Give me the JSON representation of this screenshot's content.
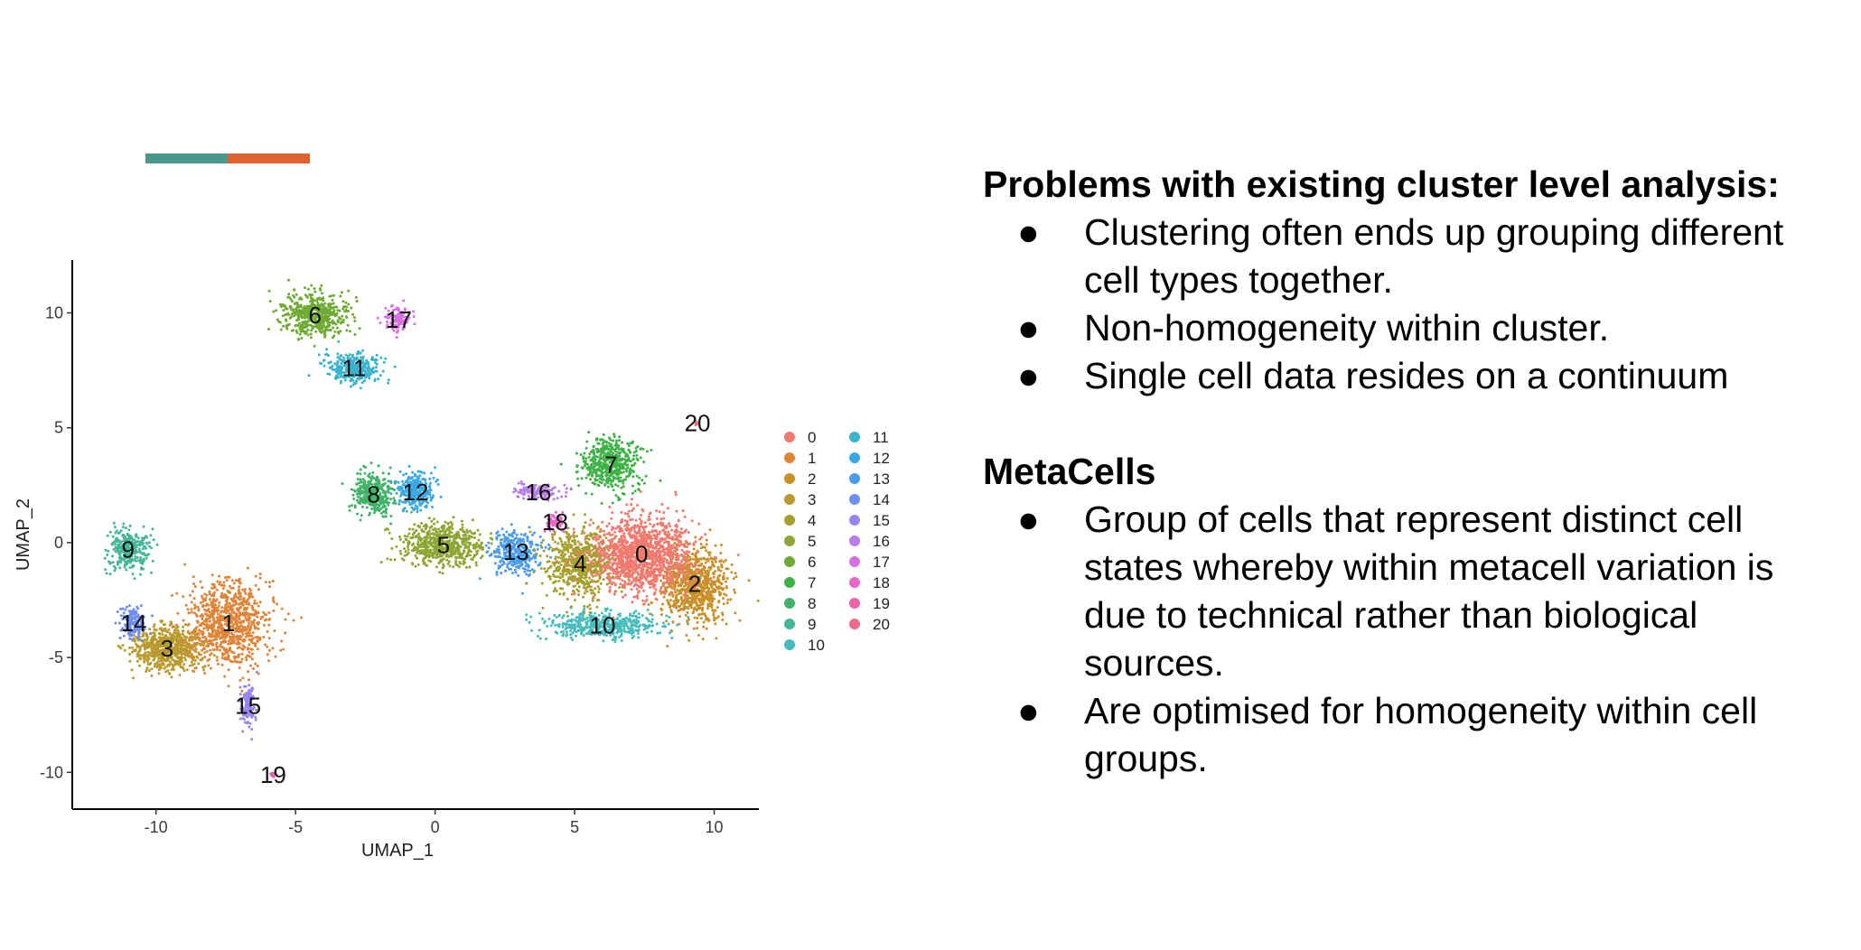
{
  "accent_colors": [
    "#4a978b",
    "#e0622f"
  ],
  "chart_data": {
    "type": "scatter",
    "title": "",
    "xlabel": "UMAP_1",
    "ylabel": "UMAP_2",
    "xlim": [
      -13.0,
      11.6
    ],
    "ylim": [
      -11.6,
      12.3
    ],
    "xticks": [
      -10,
      -5,
      0,
      5,
      10
    ],
    "yticks": [
      -10,
      -5,
      0,
      5,
      10
    ],
    "xtick_labels": [
      "-10",
      "-5",
      "0",
      "5",
      "10"
    ],
    "ytick_labels": [
      "-10",
      "-5",
      "0",
      "5",
      "10"
    ],
    "grid": false,
    "legend_position": "right",
    "legend_columns": 2,
    "clusters": [
      {
        "id": "0",
        "color": "#f07a70",
        "x": 7.4,
        "y": -0.5
      },
      {
        "id": "1",
        "color": "#df853a",
        "x": -7.4,
        "y": -3.5
      },
      {
        "id": "2",
        "color": "#c9902a",
        "x": 9.3,
        "y": -1.8
      },
      {
        "id": "3",
        "color": "#b99a2c",
        "x": -9.6,
        "y": -4.6
      },
      {
        "id": "4",
        "color": "#a5a12d",
        "x": 5.2,
        "y": -0.9
      },
      {
        "id": "5",
        "color": "#8fa534",
        "x": 0.3,
        "y": -0.1
      },
      {
        "id": "6",
        "color": "#6eab34",
        "x": -4.3,
        "y": 9.9
      },
      {
        "id": "7",
        "color": "#3fb246",
        "x": 6.3,
        "y": 3.4
      },
      {
        "id": "8",
        "color": "#43b36b",
        "x": -2.2,
        "y": 2.1
      },
      {
        "id": "9",
        "color": "#46b598",
        "x": -11.0,
        "y": -0.3
      },
      {
        "id": "10",
        "color": "#48bcbd",
        "x": 6.0,
        "y": -3.6
      },
      {
        "id": "11",
        "color": "#3ab3cf",
        "x": -2.9,
        "y": 7.6
      },
      {
        "id": "12",
        "color": "#3aa8e4",
        "x": -0.7,
        "y": 2.2
      },
      {
        "id": "13",
        "color": "#4c9cee",
        "x": 2.9,
        "y": -0.4
      },
      {
        "id": "14",
        "color": "#6f8ff0",
        "x": -10.8,
        "y": -3.5
      },
      {
        "id": "15",
        "color": "#9686ee",
        "x": -6.7,
        "y": -7.1
      },
      {
        "id": "16",
        "color": "#b77ce9",
        "x": 3.7,
        "y": 2.2
      },
      {
        "id": "17",
        "color": "#d870e0",
        "x": -1.3,
        "y": 9.7
      },
      {
        "id": "18",
        "color": "#ea66c8",
        "x": 4.3,
        "y": 0.9
      },
      {
        "id": "19",
        "color": "#ec63a6",
        "x": -5.8,
        "y": -10.1
      },
      {
        "id": "20",
        "color": "#ed6a8a",
        "x": 9.4,
        "y": 5.2
      }
    ]
  },
  "text": {
    "heading1": "Problems with existing cluster level analysis:",
    "bullets1": [
      "Clustering often ends up grouping different cell types together.",
      "Non-homogeneity within cluster.",
      "Single cell data resides on a continuum"
    ],
    "heading2": "MetaCells",
    "bullets2": [
      "Group of cells that represent distinct cell states whereby within metacell variation is due to technical rather than biological sources.",
      "Are optimised for homogeneity within cell groups."
    ],
    "bullet_symbol": "●"
  }
}
